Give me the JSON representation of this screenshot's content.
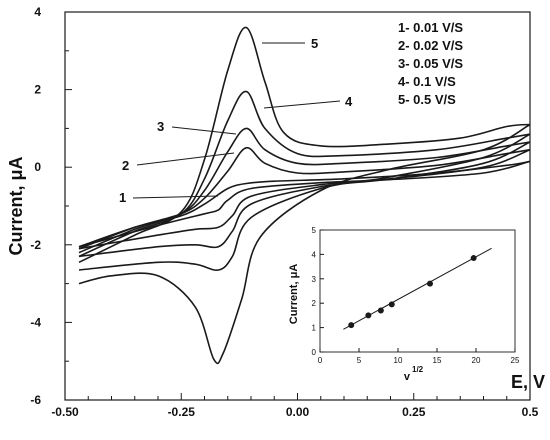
{
  "chart_data": [
    {
      "type": "line",
      "xlabel": "E, V",
      "ylabel": "Current, μA",
      "xlim": [
        -0.5,
        0.5
      ],
      "ylim": [
        -6,
        4
      ],
      "x_ticks": [
        "-0.50",
        "-0.25",
        "0.00",
        "0.25",
        "0.5"
      ],
      "y_ticks": [
        "4",
        "2",
        "0",
        "-2",
        "-4",
        "-6"
      ],
      "legend": [
        "1- 0.01 V/S",
        "2- 0.02 V/S",
        "3- 0.05 V/S",
        "4- 0.1 V/S",
        "5- 0.5 V/S"
      ],
      "series": [
        {
          "name": "1",
          "scan_rate": 0.01,
          "forward": [
            [
              -0.47,
              -2.05
            ],
            [
              -0.35,
              -1.55
            ],
            [
              -0.25,
              -1.25
            ],
            [
              -0.2,
              -0.95
            ],
            [
              -0.15,
              -0.55
            ],
            [
              -0.11,
              -0.42
            ],
            [
              -0.05,
              -0.36
            ],
            [
              0.1,
              -0.3
            ],
            [
              0.3,
              -0.15
            ],
            [
              0.45,
              0.05
            ],
            [
              0.5,
              0.15
            ]
          ],
          "reverse": [
            [
              0.5,
              0.15
            ],
            [
              0.4,
              -0.15
            ],
            [
              0.2,
              -0.32
            ],
            [
              0.05,
              -0.4
            ],
            [
              -0.1,
              -0.55
            ],
            [
              -0.15,
              -0.85
            ],
            [
              -0.17,
              -1.1
            ],
            [
              -0.2,
              -1.2
            ],
            [
              -0.3,
              -1.5
            ],
            [
              -0.47,
              -2.05
            ]
          ]
        },
        {
          "name": "2",
          "scan_rate": 0.02,
          "forward": [
            [
              -0.47,
              -2.1
            ],
            [
              -0.35,
              -1.55
            ],
            [
              -0.25,
              -1.2
            ],
            [
              -0.2,
              -0.8
            ],
            [
              -0.15,
              -0.1
            ],
            [
              -0.11,
              0.5
            ],
            [
              -0.07,
              0.1
            ],
            [
              0.0,
              -0.15
            ],
            [
              0.1,
              -0.12
            ],
            [
              0.3,
              0.05
            ],
            [
              0.45,
              0.35
            ],
            [
              0.5,
              0.45
            ]
          ],
          "reverse": [
            [
              0.5,
              0.45
            ],
            [
              0.4,
              0.0
            ],
            [
              0.2,
              -0.3
            ],
            [
              0.05,
              -0.45
            ],
            [
              -0.1,
              -0.75
            ],
            [
              -0.14,
              -1.25
            ],
            [
              -0.17,
              -1.55
            ],
            [
              -0.22,
              -1.6
            ],
            [
              -0.3,
              -1.75
            ],
            [
              -0.47,
              -2.1
            ]
          ]
        },
        {
          "name": "3",
          "scan_rate": 0.05,
          "forward": [
            [
              -0.47,
              -2.2
            ],
            [
              -0.35,
              -1.6
            ],
            [
              -0.25,
              -1.2
            ],
            [
              -0.2,
              -0.6
            ],
            [
              -0.15,
              0.4
            ],
            [
              -0.11,
              1.0
            ],
            [
              -0.07,
              0.45
            ],
            [
              0.0,
              0.1
            ],
            [
              0.1,
              0.1
            ],
            [
              0.3,
              0.25
            ],
            [
              0.45,
              0.55
            ],
            [
              0.5,
              0.65
            ]
          ],
          "reverse": [
            [
              0.5,
              0.65
            ],
            [
              0.4,
              0.1
            ],
            [
              0.2,
              -0.3
            ],
            [
              0.05,
              -0.5
            ],
            [
              -0.1,
              -0.95
            ],
            [
              -0.14,
              -1.65
            ],
            [
              -0.17,
              -2.05
            ],
            [
              -0.22,
              -2.0
            ],
            [
              -0.3,
              -2.05
            ],
            [
              -0.47,
              -2.3
            ]
          ]
        },
        {
          "name": "4",
          "scan_rate": 0.1,
          "forward": [
            [
              -0.47,
              -2.3
            ],
            [
              -0.35,
              -1.65
            ],
            [
              -0.25,
              -1.2
            ],
            [
              -0.2,
              -0.3
            ],
            [
              -0.15,
              1.2
            ],
            [
              -0.11,
              1.95
            ],
            [
              -0.07,
              1.0
            ],
            [
              0.0,
              0.35
            ],
            [
              0.1,
              0.3
            ],
            [
              0.3,
              0.45
            ],
            [
              0.45,
              0.75
            ],
            [
              0.5,
              0.85
            ]
          ],
          "reverse": [
            [
              0.5,
              0.85
            ],
            [
              0.4,
              0.25
            ],
            [
              0.2,
              -0.25
            ],
            [
              0.05,
              -0.55
            ],
            [
              -0.1,
              -1.3
            ],
            [
              -0.14,
              -2.3
            ],
            [
              -0.17,
              -2.65
            ],
            [
              -0.22,
              -2.5
            ],
            [
              -0.3,
              -2.45
            ],
            [
              -0.47,
              -2.65
            ]
          ]
        },
        {
          "name": "5",
          "scan_rate": 0.5,
          "forward": [
            [
              -0.47,
              -2.45
            ],
            [
              -0.35,
              -1.75
            ],
            [
              -0.25,
              -1.15
            ],
            [
              -0.2,
              0.2
            ],
            [
              -0.15,
              2.5
            ],
            [
              -0.11,
              3.6
            ],
            [
              -0.07,
              2.2
            ],
            [
              -0.03,
              0.9
            ],
            [
              0.05,
              0.55
            ],
            [
              0.2,
              0.6
            ],
            [
              0.35,
              0.75
            ],
            [
              0.45,
              1.05
            ],
            [
              0.5,
              1.1
            ]
          ],
          "reverse": [
            [
              0.5,
              1.1
            ],
            [
              0.4,
              0.45
            ],
            [
              0.2,
              -0.05
            ],
            [
              0.05,
              -0.6
            ],
            [
              -0.08,
              -1.8
            ],
            [
              -0.12,
              -3.4
            ],
            [
              -0.16,
              -4.8
            ],
            [
              -0.18,
              -4.95
            ],
            [
              -0.22,
              -3.6
            ],
            [
              -0.3,
              -2.8
            ],
            [
              -0.4,
              -2.8
            ],
            [
              -0.47,
              -3.0
            ]
          ]
        }
      ]
    },
    {
      "type": "scatter",
      "xlabel": "v",
      "xlabel_exp": "1/2",
      "ylabel": "Current, μA",
      "xlim": [
        0,
        25
      ],
      "ylim": [
        0,
        5
      ],
      "x_ticks": [
        "0",
        "5",
        "10",
        "15",
        "20",
        "25"
      ],
      "y_ticks": [
        "0",
        "1",
        "2",
        "3",
        "4",
        "5"
      ],
      "points": [
        [
          4,
          1.1
        ],
        [
          6.2,
          1.5
        ],
        [
          7.8,
          1.7
        ],
        [
          9.2,
          1.95
        ],
        [
          14.1,
          2.8
        ],
        [
          19.7,
          3.85
        ]
      ],
      "fit_line": {
        "x": [
          3,
          22
        ],
        "y": [
          0.93,
          4.25
        ]
      }
    }
  ],
  "curve_labels": [
    "1",
    "2",
    "3",
    "4",
    "5"
  ],
  "colors": {
    "ink": "#1a1a1a",
    "background": "#ffffff"
  }
}
